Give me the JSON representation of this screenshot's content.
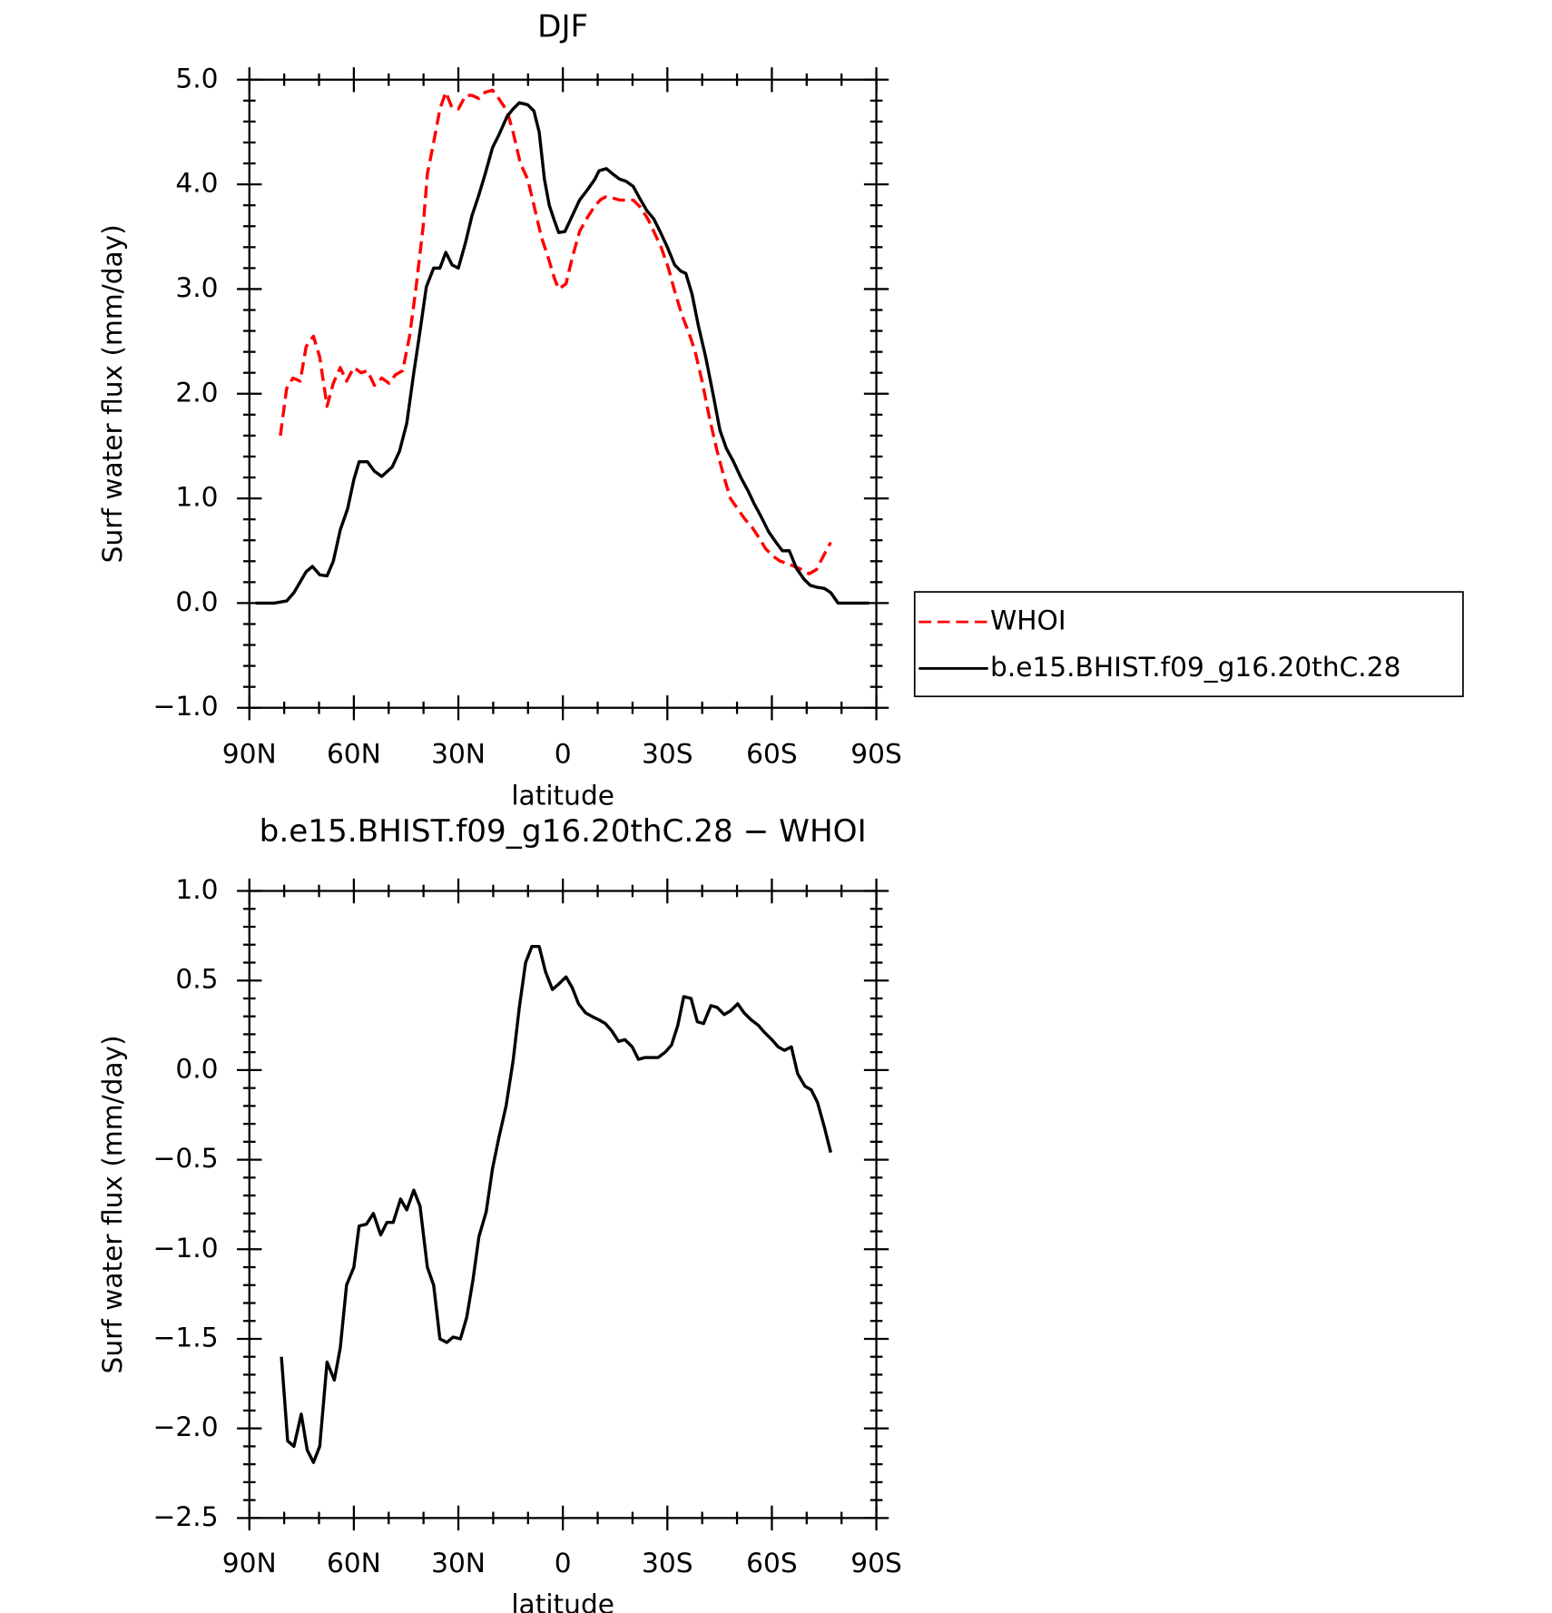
{
  "chart_data": [
    {
      "type": "line",
      "title": "DJF",
      "xlabel": "latitude",
      "ylabel": "Surf water flux (mm/day)",
      "xlim": [
        90,
        -90
      ],
      "xticks": [
        {
          "value": 90,
          "label": "90N"
        },
        {
          "value": 60,
          "label": "60N"
        },
        {
          "value": 30,
          "label": "30N"
        },
        0,
        {
          "value": -30,
          "label": "30S"
        },
        {
          "value": -60,
          "label": "60S"
        },
        {
          "value": -90,
          "label": "90S"
        }
      ],
      "ylim": [
        -1,
        5
      ],
      "yticks": [
        {
          "value": -1,
          "label": "−1.0"
        },
        {
          "value": 0,
          "label": "0.0"
        },
        {
          "value": 1,
          "label": "1.0"
        },
        {
          "value": 2,
          "label": "2.0"
        },
        {
          "value": 3,
          "label": "3.0"
        },
        {
          "value": 4,
          "label": "4.0"
        },
        {
          "value": 5,
          "label": "5.0"
        }
      ],
      "legend": "right",
      "series": [
        {
          "name": "WHOI",
          "color": "#ff0000",
          "linestyle": "dashed",
          "x": [
            81.1,
            79.3,
            77.5,
            75.4,
            73.7,
            71.6,
            69.8,
            67.7,
            65.9,
            63.9,
            62.1,
            60,
            57.9,
            56.1,
            54.1,
            52,
            49.9,
            48.1,
            46,
            44,
            42.2,
            40.1,
            38.9,
            37.1,
            35.3,
            33.6,
            31.8,
            30,
            27.9,
            26.1,
            24.1,
            22.3,
            20.2,
            18.4,
            16,
            14.3,
            12.2,
            10.1,
            8.3,
            6.2,
            4.2,
            2.4,
            1.2,
            -0.9,
            -2.7,
            -4.8,
            -6.8,
            -8.9,
            -10.7,
            -12.2,
            -14.3,
            -16.3,
            -20.2,
            -22.3,
            -24.4,
            -26.1,
            -28.2,
            -30.3,
            -32.1,
            -34.2,
            -36.2,
            -38,
            -40.1,
            -42.2,
            -44.3,
            -46.3,
            -48.1,
            -50.2,
            -52.3,
            -54.4,
            -56.4,
            -58.2,
            -60.3,
            -62.4,
            -64.4,
            -66.5,
            -68.6,
            -70.7,
            -72.8,
            -74.8,
            -76.9
          ],
          "values": [
            1.6,
            2.05,
            2.15,
            2.12,
            2.45,
            2.55,
            2.35,
            1.88,
            2.1,
            2.25,
            2.12,
            2.25,
            2.2,
            2.22,
            2.08,
            2.15,
            2.1,
            2.18,
            2.22,
            2.55,
            3.0,
            3.6,
            4.1,
            4.4,
            4.72,
            4.88,
            4.73,
            4.72,
            4.85,
            4.85,
            4.82,
            4.88,
            4.9,
            4.82,
            4.7,
            4.5,
            4.2,
            4.05,
            3.8,
            3.5,
            3.3,
            3.1,
            3.0,
            3.05,
            3.3,
            3.55,
            3.67,
            3.78,
            3.85,
            3.88,
            3.87,
            3.85,
            3.85,
            3.78,
            3.67,
            3.55,
            3.4,
            3.2,
            2.98,
            2.75,
            2.58,
            2.4,
            2.1,
            1.75,
            1.45,
            1.2,
            1.0,
            0.9,
            0.8,
            0.72,
            0.62,
            0.52,
            0.45,
            0.4,
            0.38,
            0.35,
            0.32,
            0.28,
            0.32,
            0.45,
            0.58
          ]
        },
        {
          "name": "b.e15.BHIST.f09_g16.20thC.28",
          "color": "#000000",
          "linestyle": "solid",
          "x": [
            88.2,
            82.9,
            79.3,
            77.2,
            73.7,
            71.9,
            69.8,
            67.7,
            65.9,
            63.9,
            61.8,
            60,
            58.5,
            56.1,
            54.1,
            52,
            49,
            46.9,
            44.8,
            42.8,
            41,
            39.2,
            37.1,
            35.3,
            33.6,
            31.8,
            30,
            27.9,
            26.1,
            24.1,
            22.3,
            20.2,
            18.4,
            16,
            14.3,
            12.5,
            10.1,
            8.3,
            6.8,
            5.3,
            3.9,
            2.4,
            1.2,
            -0.6,
            -2.7,
            -4.8,
            -7.1,
            -9.2,
            -10.4,
            -12.5,
            -14.3,
            -16.3,
            -18.1,
            -20.2,
            -22,
            -24.1,
            -26.1,
            -27.9,
            -30,
            -32.1,
            -33.9,
            -35.3,
            -37.1,
            -38.9,
            -41,
            -43.1,
            -45.1,
            -46.9,
            -49,
            -51.1,
            -53.2,
            -54.9,
            -57,
            -59.1,
            -61.2,
            -63,
            -65,
            -67.1,
            -69.2,
            -71,
            -73.1,
            -75.1,
            -76.9,
            -79,
            -87.9
          ],
          "values": [
            0.0,
            0.0,
            0.02,
            0.1,
            0.3,
            0.35,
            0.27,
            0.26,
            0.4,
            0.7,
            0.9,
            1.18,
            1.35,
            1.35,
            1.26,
            1.21,
            1.3,
            1.45,
            1.72,
            2.2,
            2.6,
            3.02,
            3.2,
            3.2,
            3.35,
            3.23,
            3.2,
            3.45,
            3.7,
            3.9,
            4.1,
            4.35,
            4.47,
            4.65,
            4.72,
            4.78,
            4.76,
            4.7,
            4.5,
            4.05,
            3.8,
            3.65,
            3.54,
            3.55,
            3.7,
            3.85,
            3.95,
            4.05,
            4.13,
            4.15,
            4.1,
            4.05,
            4.03,
            3.98,
            3.87,
            3.75,
            3.67,
            3.55,
            3.4,
            3.23,
            3.17,
            3.15,
            2.95,
            2.65,
            2.35,
            2.0,
            1.65,
            1.48,
            1.35,
            1.2,
            1.07,
            0.95,
            0.82,
            0.68,
            0.58,
            0.5,
            0.5,
            0.33,
            0.23,
            0.17,
            0.15,
            0.14,
            0.1,
            0.0,
            0.0
          ]
        }
      ]
    },
    {
      "type": "line",
      "title": "b.e15.BHIST.f09_g16.20thC.28 − WHOI",
      "xlabel": "latitude",
      "ylabel": "Surf water flux (mm/day)",
      "xlim": [
        90,
        -90
      ],
      "xticks": [
        {
          "value": 90,
          "label": "90N"
        },
        {
          "value": 60,
          "label": "60N"
        },
        {
          "value": 30,
          "label": "30N"
        },
        0,
        {
          "value": -30,
          "label": "30S"
        },
        {
          "value": -60,
          "label": "60S"
        },
        {
          "value": -90,
          "label": "90S"
        }
      ],
      "ylim": [
        -2.5,
        1
      ],
      "yticks": [
        {
          "value": -2.5,
          "label": "−2.5"
        },
        {
          "value": -2,
          "label": "−2.0"
        },
        {
          "value": -1.5,
          "label": "−1.5"
        },
        {
          "value": -1,
          "label": "−1.0"
        },
        {
          "value": -0.5,
          "label": "−0.5"
        },
        {
          "value": 0,
          "label": "0.0"
        },
        {
          "value": 0.5,
          "label": "0.5"
        },
        {
          "value": 1,
          "label": "1.0"
        }
      ],
      "series": [
        {
          "color": "#000000",
          "linestyle": "solid",
          "x": [
            80.8,
            79,
            77.2,
            75.1,
            73.4,
            71.6,
            69.8,
            67.7,
            65.6,
            63.9,
            62.1,
            60,
            58.5,
            56.4,
            54.4,
            52.3,
            50.5,
            48.7,
            46.6,
            44.8,
            42.8,
            41,
            38.9,
            37.1,
            35.3,
            33.3,
            31.5,
            29.4,
            27.6,
            25.8,
            24.1,
            22,
            20.2,
            18.4,
            16.3,
            14.3,
            12.5,
            10.7,
            8.9,
            6.8,
            5,
            3,
            1.2,
            -0.9,
            -2.7,
            -4.5,
            -6.5,
            -8.3,
            -10.4,
            -12.2,
            -14,
            -16,
            -17.8,
            -19.9,
            -21.7,
            -23.5,
            -25.5,
            -27.3,
            -29.4,
            -31.2,
            -33,
            -34.7,
            -36.8,
            -38.6,
            -40.4,
            -42.5,
            -44.3,
            -46.3,
            -48.1,
            -50.2,
            -52,
            -54.1,
            -56.1,
            -57.9,
            -60,
            -61.8,
            -63.6,
            -65.6,
            -67.4,
            -69.5,
            -71.3,
            -73.1,
            -75.1,
            -76.9
          ],
          "values": [
            -1.6,
            -2.07,
            -2.1,
            -1.92,
            -2.12,
            -2.19,
            -2.1,
            -1.63,
            -1.73,
            -1.55,
            -1.2,
            -1.1,
            -0.87,
            -0.86,
            -0.8,
            -0.92,
            -0.85,
            -0.85,
            -0.72,
            -0.78,
            -0.67,
            -0.76,
            -1.1,
            -1.2,
            -1.5,
            -1.52,
            -1.49,
            -1.5,
            -1.38,
            -1.17,
            -0.93,
            -0.79,
            -0.55,
            -0.38,
            -0.2,
            0.05,
            0.35,
            0.6,
            0.69,
            0.69,
            0.55,
            0.45,
            0.48,
            0.52,
            0.46,
            0.37,
            0.32,
            0.3,
            0.28,
            0.26,
            0.22,
            0.16,
            0.17,
            0.13,
            0.06,
            0.07,
            0.07,
            0.07,
            0.1,
            0.14,
            0.25,
            0.41,
            0.4,
            0.27,
            0.26,
            0.36,
            0.35,
            0.31,
            0.33,
            0.37,
            0.32,
            0.28,
            0.25,
            0.21,
            0.17,
            0.13,
            0.11,
            0.13,
            -0.02,
            -0.09,
            -0.11,
            -0.18,
            -0.32,
            -0.46
          ]
        }
      ]
    }
  ]
}
